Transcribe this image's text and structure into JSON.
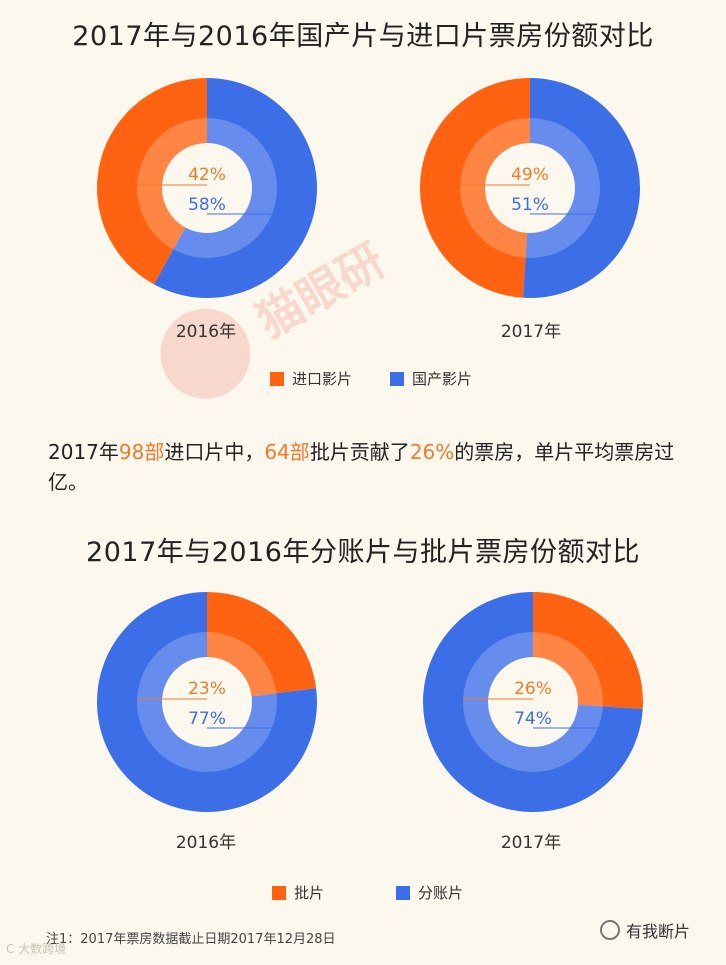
{
  "section1": {
    "title": "2017年与2016年国产片与进口片票房份额对比",
    "legend": [
      {
        "label": "进口影片",
        "color": "#ff6311"
      },
      {
        "label": "国产影片",
        "color": "#3c6ee8"
      }
    ]
  },
  "note": {
    "prefix": "2017年",
    "n1": "98部",
    "mid1": "进口片中，",
    "n2": "64部",
    "mid2": "批片贡献了",
    "n3": "26%",
    "suffix": "的票房，单片平均票房过亿。"
  },
  "section2": {
    "title": "2017年与2016年分账片与批片票房份额对比",
    "legend": [
      {
        "label": "批片",
        "color": "#ff6311"
      },
      {
        "label": "分账片",
        "color": "#3c6ee8"
      }
    ]
  },
  "footnote": "注1：2017年票房数据截止日期2017年12月28日",
  "watermark": "猫眼研",
  "wechat_account": "有我断片",
  "corner_mark": "C 大数跨境",
  "colors": {
    "orange": "#ff6311",
    "blue": "#3c6ee8",
    "orange_text": "#f07a2a",
    "blue_text": "#3c6ee8"
  },
  "chart_data": [
    {
      "type": "pie",
      "label": "2016年",
      "categories": [
        "进口影片",
        "国产影片"
      ],
      "values": [
        42,
        58
      ],
      "value_labels": [
        "42%",
        "58%"
      ]
    },
    {
      "type": "pie",
      "label": "2017年",
      "categories": [
        "进口影片",
        "国产影片"
      ],
      "values": [
        49,
        51
      ],
      "value_labels": [
        "49%",
        "51%"
      ]
    },
    {
      "type": "pie",
      "label": "2016年",
      "categories": [
        "批片",
        "分账片"
      ],
      "values": [
        23,
        77
      ],
      "value_labels": [
        "23%",
        "77%"
      ]
    },
    {
      "type": "pie",
      "label": "2017年",
      "categories": [
        "批片",
        "分账片"
      ],
      "values": [
        26,
        74
      ],
      "value_labels": [
        "26%",
        "74%"
      ]
    }
  ]
}
